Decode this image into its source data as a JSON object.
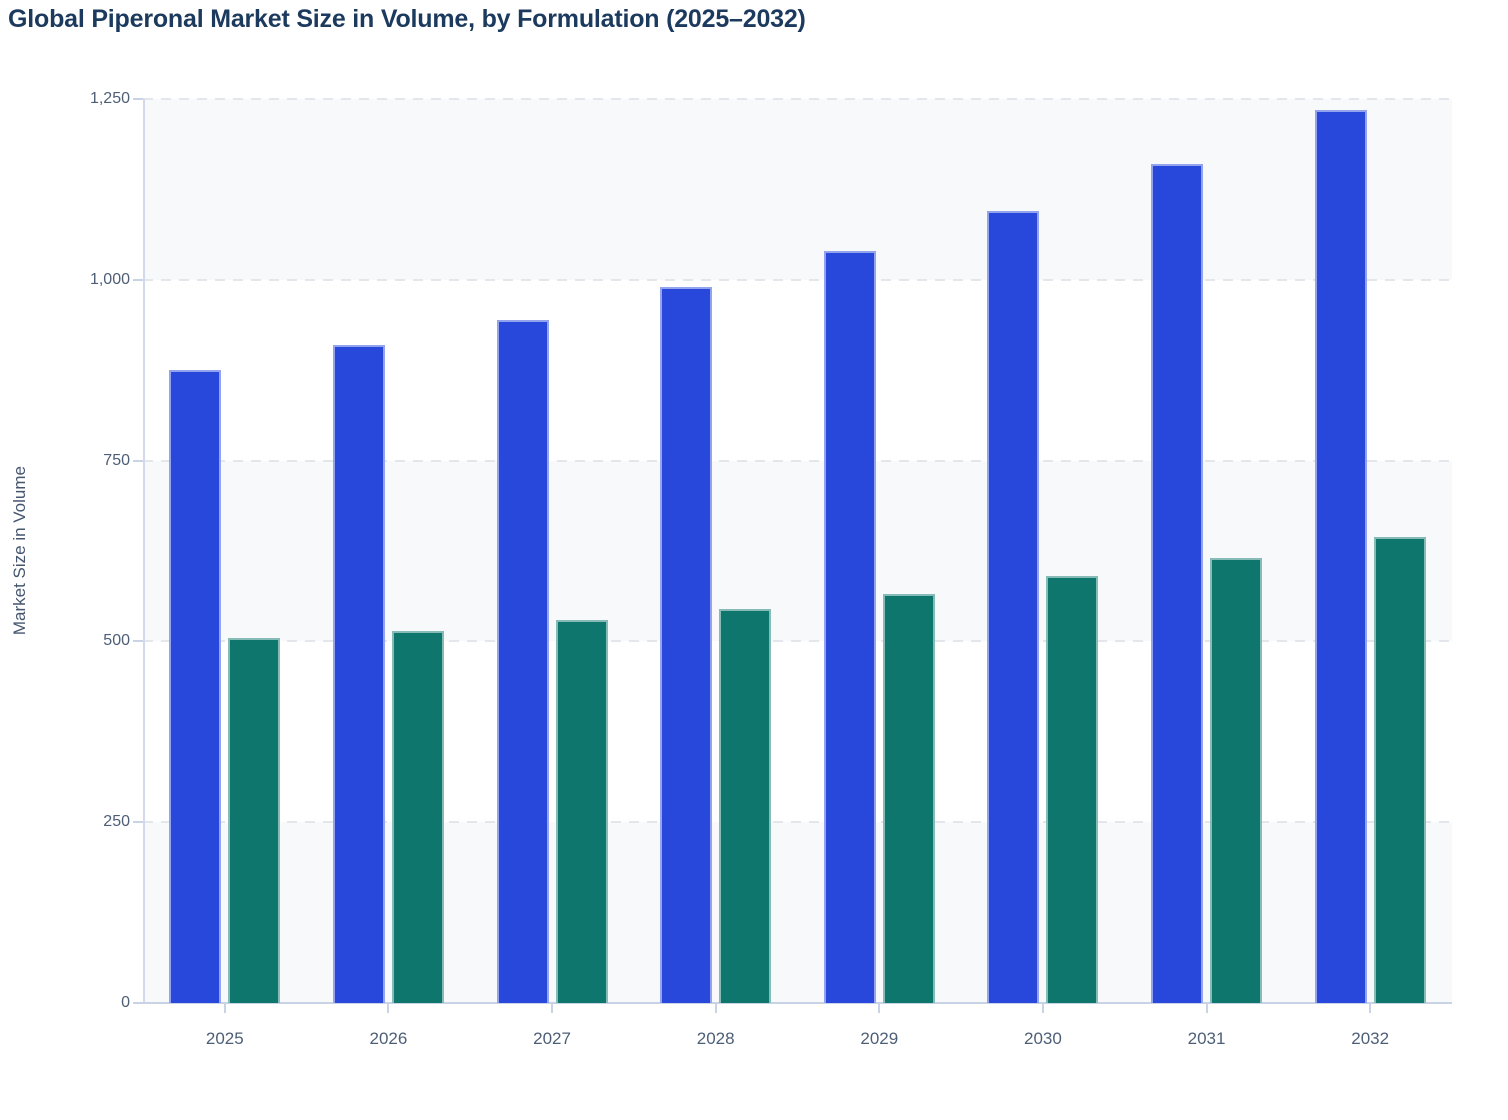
{
  "chart_data": {
    "type": "bar",
    "title": "Global Piperonal Market Size in Volume, by Formulation (2025–2032)",
    "ylabel": "Market Size in Volume",
    "xlabel": "",
    "categories": [
      "2025",
      "2026",
      "2027",
      "2028",
      "2029",
      "2030",
      "2031",
      "2032"
    ],
    "series": [
      {
        "name": "blue-series",
        "color": "#2847DB",
        "values": [
          875,
          910,
          945,
          990,
          1040,
          1095,
          1160,
          1235
        ]
      },
      {
        "name": "teal-series",
        "color": "#0F766E",
        "values": [
          505,
          515,
          530,
          545,
          565,
          590,
          615,
          645
        ]
      }
    ],
    "ylim": [
      0,
      1250
    ],
    "yticks": [
      "1,250",
      "1,000",
      "750",
      "500",
      "250",
      "0"
    ],
    "grid": "horizontal-dashed",
    "legend_position": "none",
    "plot_band_colors_top_to_bottom": [
      "#F8F9FB",
      "#FFFFFF",
      "#F8F9FB",
      "#FFFFFF",
      "#F8F9FB"
    ]
  },
  "colors": {
    "title_text": "#1C3A5E",
    "tick_label_text": "#4D5E77",
    "axis_title_text": "#44556E",
    "axis_line": "#C9D3E6",
    "gridline": "#E3E6EB",
    "band_gray": "#F8F9FB",
    "bar_blue": "#2847DB",
    "bar_teal": "#0F766E"
  }
}
